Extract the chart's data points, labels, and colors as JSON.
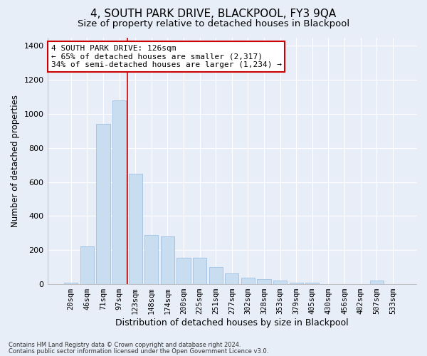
{
  "title": "4, SOUTH PARK DRIVE, BLACKPOOL, FY3 9QA",
  "subtitle": "Size of property relative to detached houses in Blackpool",
  "xlabel": "Distribution of detached houses by size in Blackpool",
  "ylabel": "Number of detached properties",
  "footer_line1": "Contains HM Land Registry data © Crown copyright and database right 2024.",
  "footer_line2": "Contains public sector information licensed under the Open Government Licence v3.0.",
  "annotation_title": "4 SOUTH PARK DRIVE: 126sqm",
  "annotation_line2": "← 65% of detached houses are smaller (2,317)",
  "annotation_line3": "34% of semi-detached houses are larger (1,234) →",
  "bar_color": "#c8ddf0",
  "bar_edge_color": "#a0c0e0",
  "vline_color": "#cc0000",
  "background_color": "#e8eef8",
  "categories": [
    "20sqm",
    "46sqm",
    "71sqm",
    "97sqm",
    "123sqm",
    "148sqm",
    "174sqm",
    "200sqm",
    "225sqm",
    "251sqm",
    "277sqm",
    "302sqm",
    "328sqm",
    "353sqm",
    "379sqm",
    "405sqm",
    "430sqm",
    "456sqm",
    "482sqm",
    "507sqm",
    "533sqm"
  ],
  "values": [
    10,
    220,
    940,
    1080,
    650,
    290,
    280,
    155,
    155,
    100,
    65,
    40,
    30,
    20,
    10,
    10,
    0,
    0,
    0,
    20,
    0
  ],
  "ylim": [
    0,
    1450
  ],
  "yticks": [
    0,
    200,
    400,
    600,
    800,
    1000,
    1200,
    1400
  ],
  "vline_x_index": 3.5,
  "grid_color": "#ffffff",
  "title_fontsize": 11,
  "subtitle_fontsize": 9.5,
  "xlabel_fontsize": 9,
  "ylabel_fontsize": 8.5,
  "tick_fontsize": 7.5,
  "annotation_fontsize": 8,
  "annotation_box_color": "#ffffff",
  "annotation_box_edgecolor": "#cc0000",
  "footer_fontsize": 6
}
